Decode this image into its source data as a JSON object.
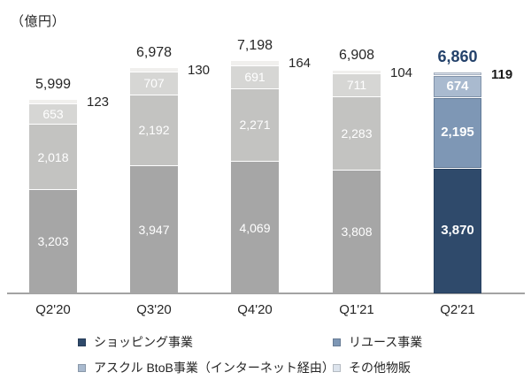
{
  "unit_label": "（億円）",
  "chart_data": {
    "type": "bar",
    "stacked": true,
    "title": "",
    "ylabel": "（億円）",
    "categories": [
      "Q2'20",
      "Q3'20",
      "Q4'20",
      "Q1'21",
      "Q2'21"
    ],
    "series": [
      {
        "name": "ショッピング事業",
        "values": [
          3203,
          3947,
          4069,
          3808,
          3870
        ]
      },
      {
        "name": "リユース事業",
        "values": [
          2018,
          2192,
          2271,
          2283,
          2195
        ]
      },
      {
        "name": "アスクル BtoB事業（インターネット経由）",
        "values": [
          653,
          707,
          691,
          711,
          674
        ]
      },
      {
        "name": "その他物販",
        "values": [
          123,
          130,
          164,
          104,
          119
        ]
      }
    ],
    "totals_displayed": [
      "5,999",
      "6,978",
      "7,198",
      "6,908",
      "6,860"
    ],
    "other_values_displayed": [
      "123",
      "130",
      "164",
      "104",
      "119"
    ],
    "inside_labels_displayed": {
      "shopping": [
        "3,203",
        "3,947",
        "4,069",
        "3,808",
        "3,870"
      ],
      "reuse": [
        "2,018",
        "2,192",
        "2,271",
        "2,283",
        "2,195"
      ],
      "askul": [
        "653",
        "707",
        "691",
        "711",
        "674"
      ]
    },
    "highlight_index": 4,
    "grid": false,
    "legend_position": "bottom",
    "colors": {
      "normal_palette": [
        "#a6a6a6",
        "#c3c3c1",
        "#d6d6d4",
        "#f0efed"
      ],
      "highlight_palette": [
        "#2f4a6b",
        "#7e97b5",
        "#a9bacf",
        "#dde4ed"
      ],
      "total_label": "#262626",
      "highlight_total_label": "#24426b",
      "axis_line": "#a3a3a3",
      "segment_text": "#ffffff"
    }
  },
  "legend": {
    "items": [
      {
        "label": "ショッピング事業",
        "color": "#2f4a6b"
      },
      {
        "label": "リユース事業",
        "color": "#7e97b5"
      },
      {
        "label": "アスクル BtoB事業（インターネット経由）",
        "color": "#a9bacf"
      },
      {
        "label": "その他物販",
        "color": "#dde4ed"
      }
    ]
  }
}
